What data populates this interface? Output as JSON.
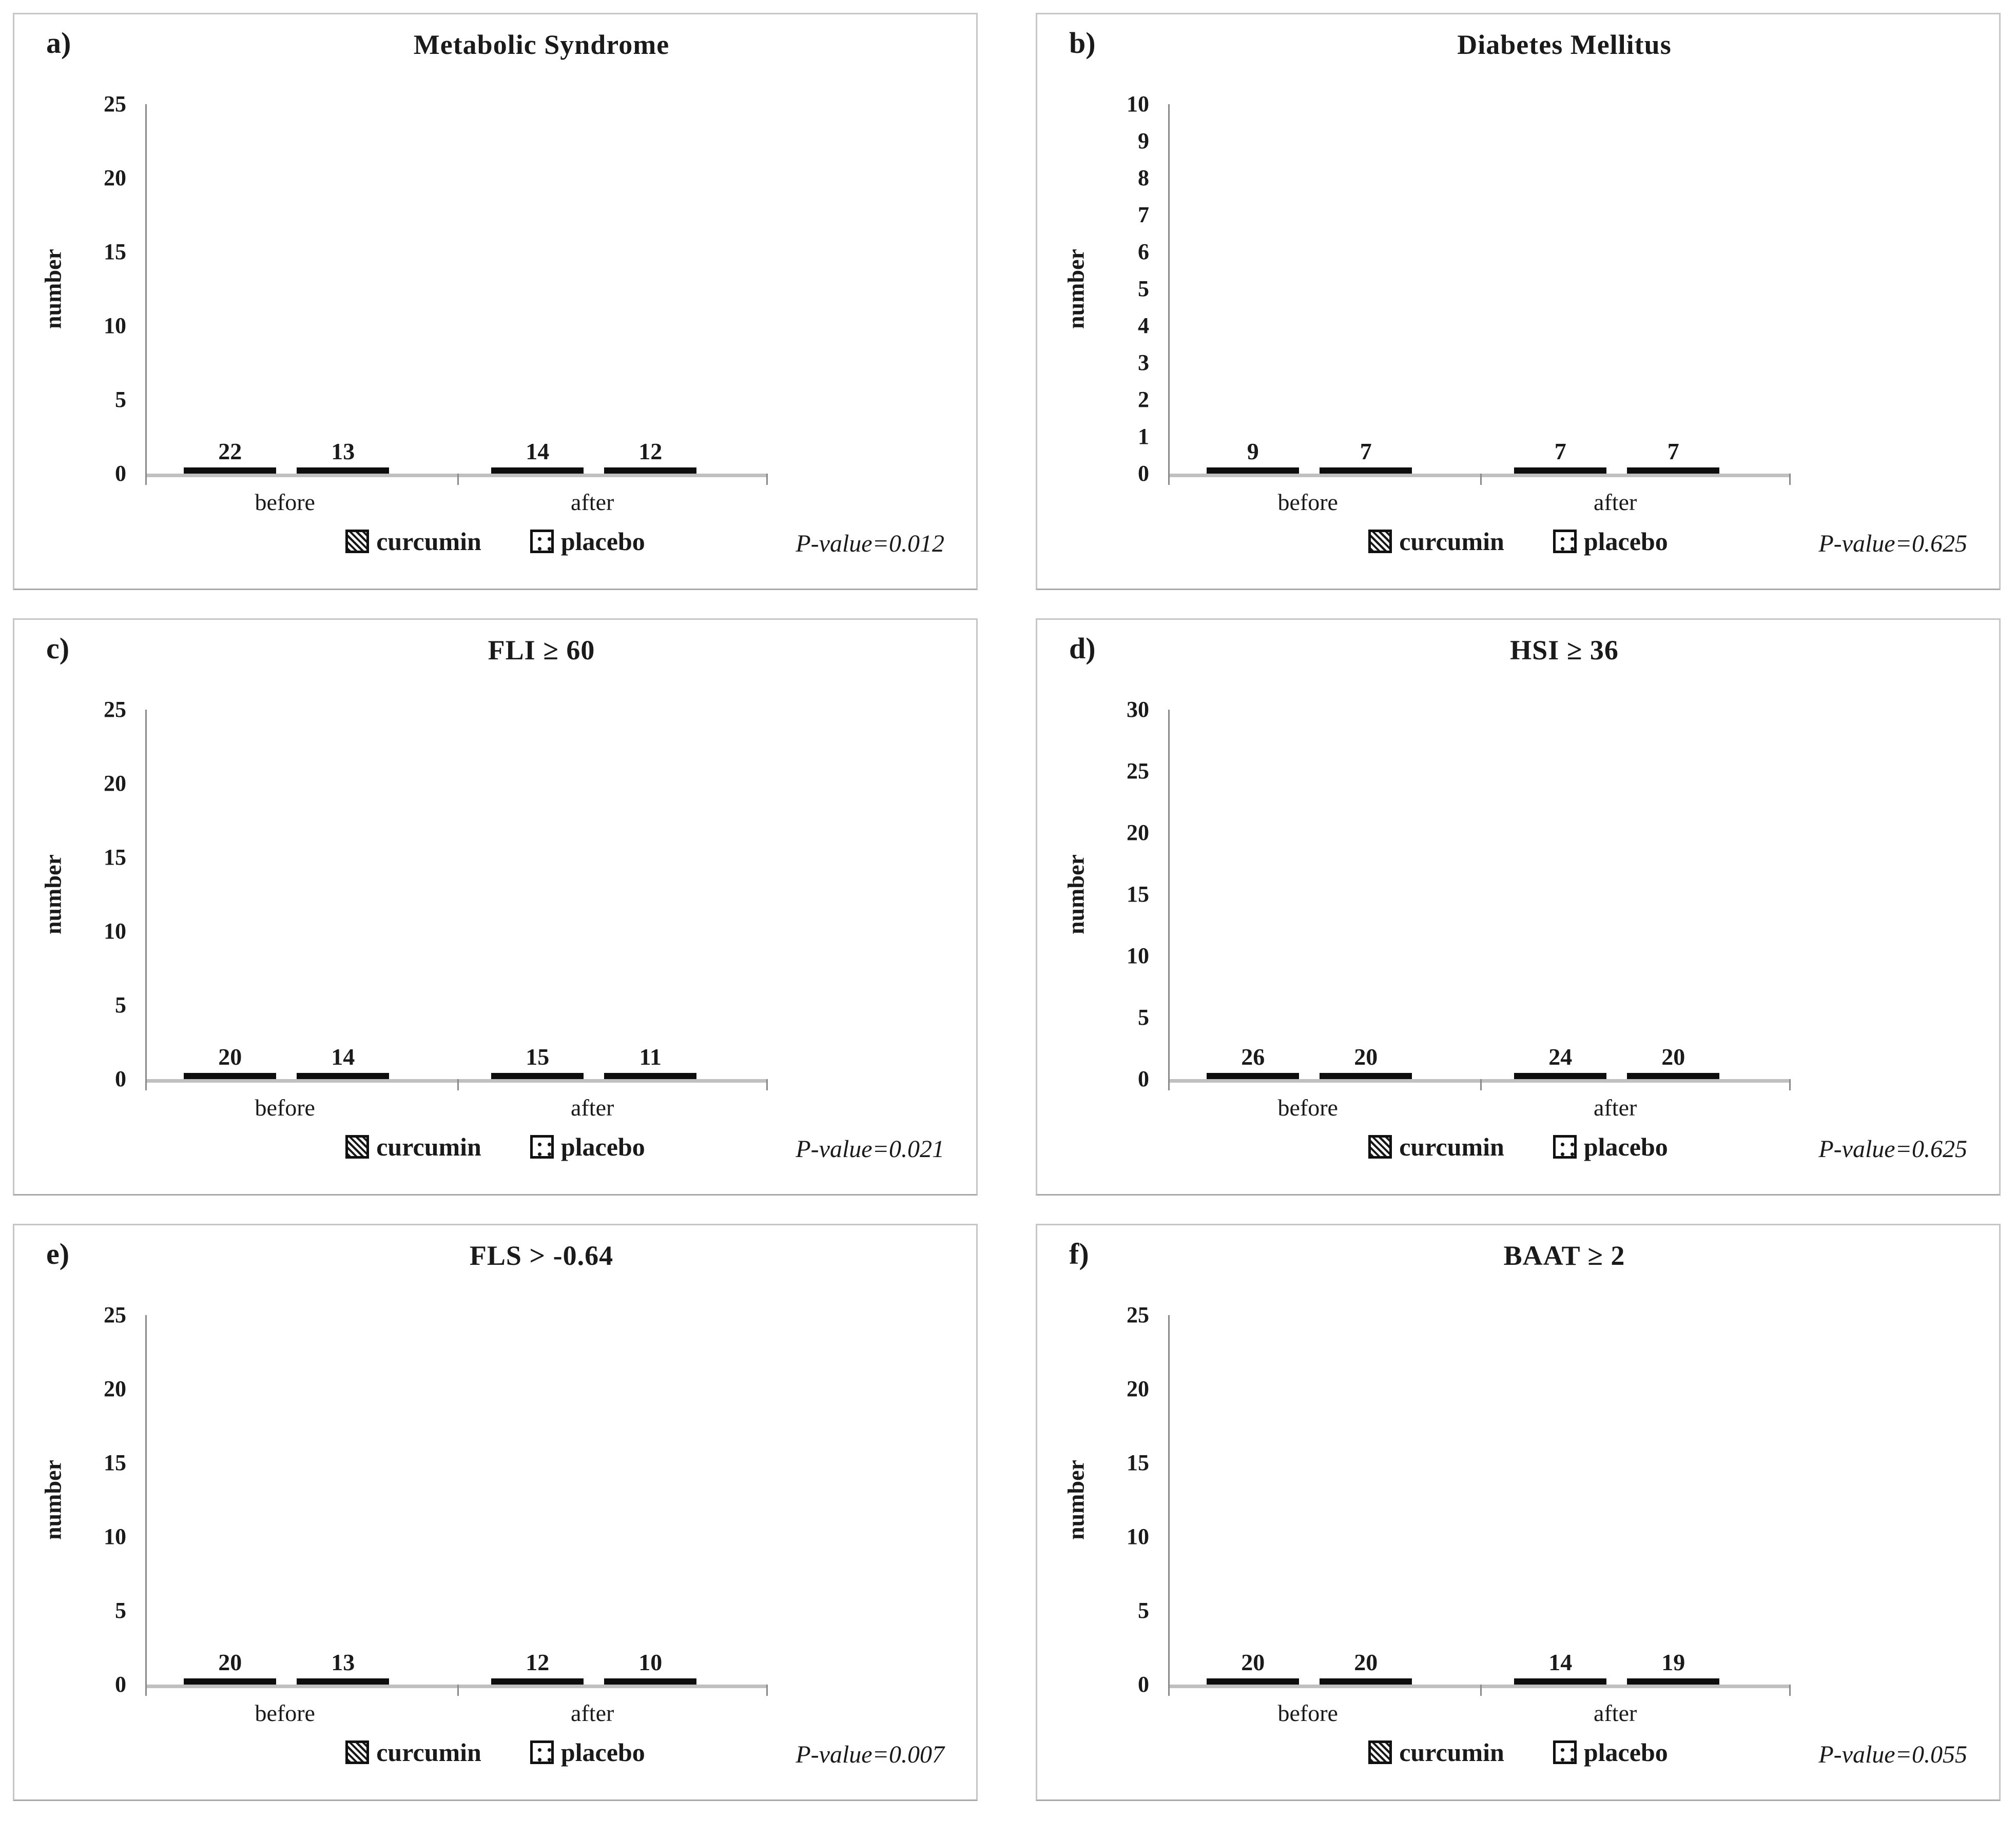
{
  "figure": {
    "ylabel": "number",
    "categories": [
      "before",
      "after"
    ],
    "legend_items": [
      "curcumin",
      "placebo"
    ]
  },
  "chart_data": [
    {
      "type": "bar",
      "letter": "a)",
      "title": "Metabolic Syndrome",
      "ylabel": "number",
      "categories": [
        "before",
        "after"
      ],
      "series": [
        {
          "name": "curcumin",
          "pattern": "diagonal-hatch",
          "values": [
            22,
            14
          ]
        },
        {
          "name": "placebo",
          "pattern": "dots",
          "values": [
            13,
            12
          ]
        }
      ],
      "ylim": [
        0,
        25
      ],
      "yticks": [
        0,
        5,
        10,
        15,
        20,
        25
      ],
      "pvalue": "P-value=0.012",
      "legend_position": "bottom",
      "grid": false
    },
    {
      "type": "bar",
      "letter": "b)",
      "title": "Diabetes Mellitus",
      "ylabel": "number",
      "categories": [
        "before",
        "after"
      ],
      "series": [
        {
          "name": "curcumin",
          "pattern": "diagonal-hatch",
          "values": [
            9,
            7
          ]
        },
        {
          "name": "placebo",
          "pattern": "dots",
          "values": [
            7,
            7
          ]
        }
      ],
      "ylim": [
        0,
        10
      ],
      "yticks": [
        0,
        1,
        2,
        3,
        4,
        5,
        6,
        7,
        8,
        9,
        10
      ],
      "pvalue": "P-value=0.625",
      "legend_position": "bottom",
      "grid": false
    },
    {
      "type": "bar",
      "letter": "c)",
      "title": "FLI ≥ 60",
      "ylabel": "number",
      "categories": [
        "before",
        "after"
      ],
      "series": [
        {
          "name": "curcumin",
          "pattern": "diagonal-hatch",
          "values": [
            20,
            15
          ]
        },
        {
          "name": "placebo",
          "pattern": "dots",
          "values": [
            14,
            11
          ]
        }
      ],
      "ylim": [
        0,
        25
      ],
      "yticks": [
        0,
        5,
        10,
        15,
        20,
        25
      ],
      "pvalue": "P-value=0.021",
      "legend_position": "bottom",
      "grid": false
    },
    {
      "type": "bar",
      "letter": "d)",
      "title": "HSI ≥ 36",
      "ylabel": "number",
      "categories": [
        "before",
        "after"
      ],
      "series": [
        {
          "name": "curcumin",
          "pattern": "diagonal-hatch",
          "values": [
            26,
            24
          ]
        },
        {
          "name": "placebo",
          "pattern": "dots",
          "values": [
            20,
            20
          ]
        }
      ],
      "ylim": [
        0,
        30
      ],
      "yticks": [
        0,
        5,
        10,
        15,
        20,
        25,
        30
      ],
      "pvalue": "P-value=0.625",
      "legend_position": "bottom",
      "grid": false
    },
    {
      "type": "bar",
      "letter": "e)",
      "title": "FLS > -0.64",
      "ylabel": "number",
      "categories": [
        "before",
        "after"
      ],
      "series": [
        {
          "name": "curcumin",
          "pattern": "diagonal-hatch",
          "values": [
            20,
            12
          ]
        },
        {
          "name": "placebo",
          "pattern": "dots",
          "values": [
            13,
            10
          ]
        }
      ],
      "ylim": [
        0,
        25
      ],
      "yticks": [
        0,
        5,
        10,
        15,
        20,
        25
      ],
      "pvalue": "P-value=0.007",
      "legend_position": "bottom",
      "grid": false
    },
    {
      "type": "bar",
      "letter": "f)",
      "title": "BAAT ≥ 2",
      "ylabel": "number",
      "categories": [
        "before",
        "after"
      ],
      "series": [
        {
          "name": "curcumin",
          "pattern": "diagonal-hatch",
          "values": [
            20,
            14
          ]
        },
        {
          "name": "placebo",
          "pattern": "dots",
          "values": [
            20,
            19
          ]
        }
      ],
      "ylim": [
        0,
        25
      ],
      "yticks": [
        0,
        5,
        10,
        15,
        20,
        25
      ],
      "pvalue": "P-value=0.055",
      "legend_position": "bottom",
      "grid": false
    }
  ]
}
